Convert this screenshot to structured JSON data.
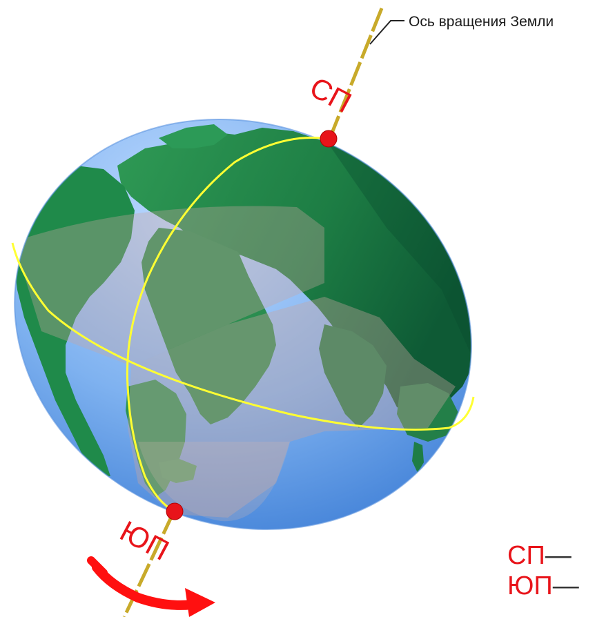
{
  "axis_label": "Ось вращения Земли",
  "north_pole_label": "СП",
  "south_pole_label": "ЮП",
  "legend": [
    {
      "abbr": "СП",
      "dash": "—"
    },
    {
      "abbr": "ЮП",
      "dash": "—"
    }
  ],
  "colors": {
    "axis": "#c8aa2a",
    "pole_marker": "#e8141a",
    "meridian_equator": "#ffff33",
    "label_red": "#e8141a",
    "ocean": "#6aa4ec",
    "land": "#1f8a4a",
    "rotation_arrow": "#ff1010"
  },
  "icons": [
    "rotation-arrow-icon"
  ]
}
